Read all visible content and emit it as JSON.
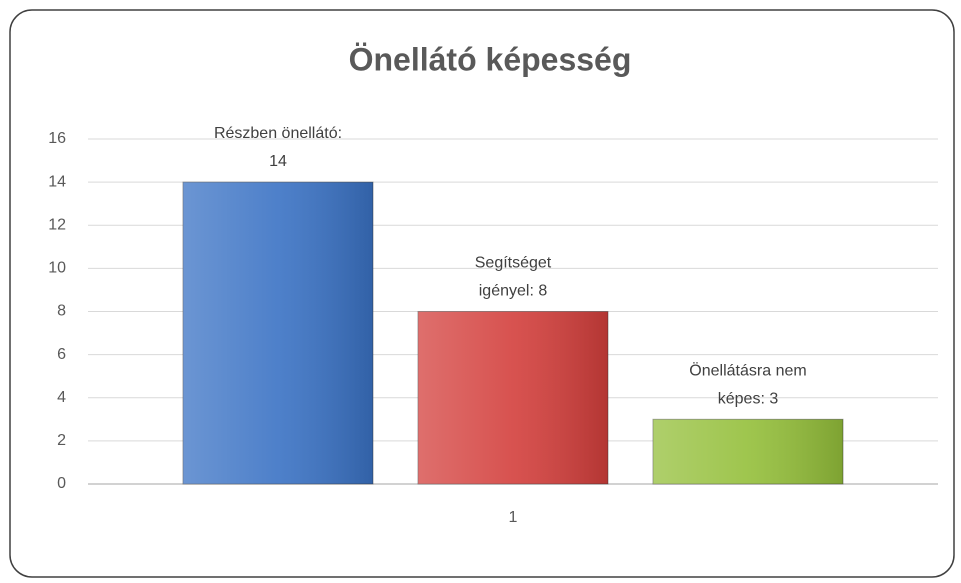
{
  "chart_data": {
    "type": "bar",
    "title": "Önellátó képesség",
    "categories": [
      "1"
    ],
    "series": [
      {
        "color": "#3a72c4",
        "values": [
          14
        ],
        "value_labels": [
          "Részben önellátó:\n14"
        ]
      },
      {
        "color": "#d33f3c",
        "values": [
          8
        ],
        "value_labels": [
          "Segítséget\nigényel: 8"
        ]
      },
      {
        "color": "#94bf3a",
        "values": [
          3
        ],
        "value_labels": [
          "Önellátásra nem\nképes: 3"
        ]
      }
    ],
    "ylim": [
      0,
      16
    ],
    "yticks": [
      0,
      2,
      4,
      6,
      8,
      10,
      12,
      14,
      16
    ],
    "grid": true
  }
}
